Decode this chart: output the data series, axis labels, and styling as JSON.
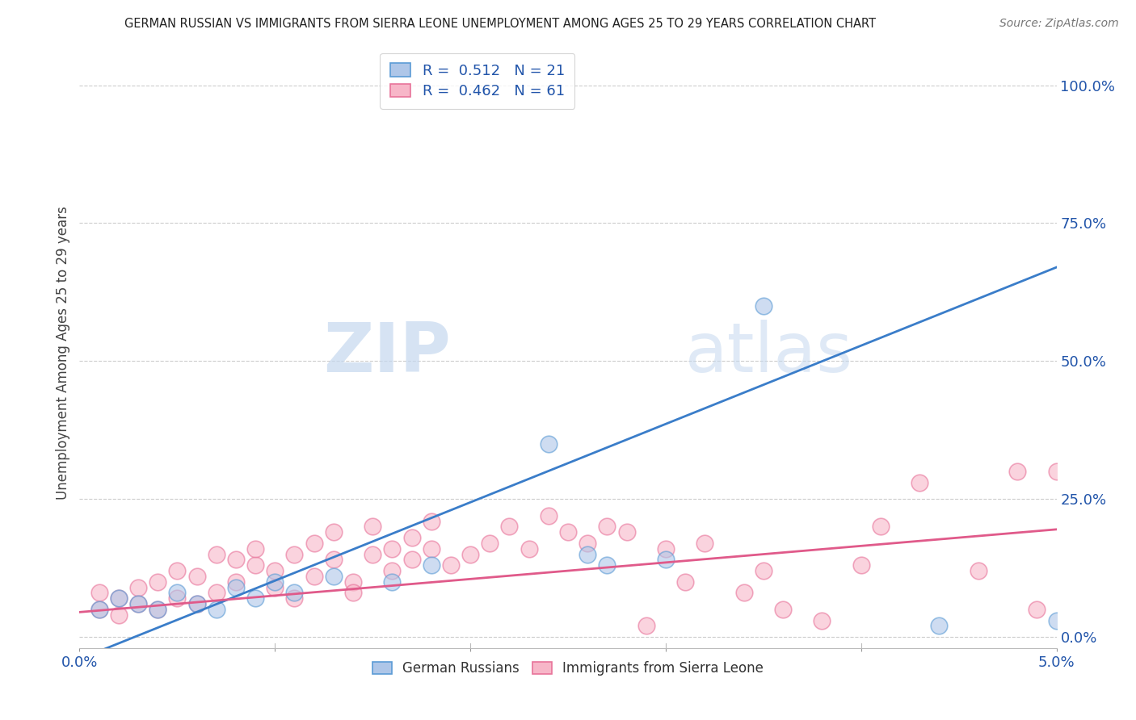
{
  "title": "GERMAN RUSSIAN VS IMMIGRANTS FROM SIERRA LEONE UNEMPLOYMENT AMONG AGES 25 TO 29 YEARS CORRELATION CHART",
  "source": "Source: ZipAtlas.com",
  "ylabel": "Unemployment Among Ages 25 to 29 years",
  "yaxis_labels": [
    "0.0%",
    "25.0%",
    "50.0%",
    "75.0%",
    "100.0%"
  ],
  "yaxis_values": [
    0.0,
    0.25,
    0.5,
    0.75,
    1.0
  ],
  "xlim": [
    0.0,
    0.05
  ],
  "ylim": [
    -0.02,
    1.05
  ],
  "blue_R": 0.512,
  "blue_N": 21,
  "pink_R": 0.462,
  "pink_N": 61,
  "blue_fill_color": "#aec6e8",
  "pink_fill_color": "#f7b6c8",
  "blue_edge_color": "#5b9bd5",
  "pink_edge_color": "#e8739a",
  "blue_line_color": "#3a7dc9",
  "pink_line_color": "#e05a8a",
  "watermark_zip": "ZIP",
  "watermark_atlas": "atlas",
  "legend_label_blue": "German Russians",
  "legend_label_pink": "Immigrants from Sierra Leone",
  "blue_scatter_x": [
    0.001,
    0.002,
    0.003,
    0.004,
    0.005,
    0.006,
    0.007,
    0.008,
    0.009,
    0.01,
    0.011,
    0.013,
    0.016,
    0.018,
    0.024,
    0.026,
    0.027,
    0.03,
    0.035,
    0.044,
    0.05
  ],
  "blue_scatter_y": [
    0.05,
    0.07,
    0.06,
    0.05,
    0.08,
    0.06,
    0.05,
    0.09,
    0.07,
    0.1,
    0.08,
    0.11,
    0.1,
    0.13,
    0.35,
    0.15,
    0.13,
    0.14,
    0.6,
    0.02,
    0.03
  ],
  "pink_scatter_x": [
    0.001,
    0.001,
    0.002,
    0.002,
    0.003,
    0.003,
    0.004,
    0.004,
    0.005,
    0.005,
    0.006,
    0.006,
    0.007,
    0.007,
    0.008,
    0.008,
    0.009,
    0.009,
    0.01,
    0.01,
    0.011,
    0.011,
    0.012,
    0.012,
    0.013,
    0.013,
    0.014,
    0.014,
    0.015,
    0.015,
    0.016,
    0.016,
    0.017,
    0.017,
    0.018,
    0.018,
    0.019,
    0.02,
    0.021,
    0.022,
    0.023,
    0.024,
    0.025,
    0.026,
    0.027,
    0.028,
    0.029,
    0.03,
    0.031,
    0.032,
    0.034,
    0.035,
    0.036,
    0.038,
    0.04,
    0.041,
    0.043,
    0.046,
    0.048,
    0.049,
    0.05
  ],
  "pink_scatter_y": [
    0.05,
    0.08,
    0.04,
    0.07,
    0.06,
    0.09,
    0.05,
    0.1,
    0.07,
    0.12,
    0.06,
    0.11,
    0.15,
    0.08,
    0.14,
    0.1,
    0.13,
    0.16,
    0.09,
    0.12,
    0.15,
    0.07,
    0.17,
    0.11,
    0.14,
    0.19,
    0.1,
    0.08,
    0.15,
    0.2,
    0.16,
    0.12,
    0.18,
    0.14,
    0.21,
    0.16,
    0.13,
    0.15,
    0.17,
    0.2,
    0.16,
    0.22,
    0.19,
    0.17,
    0.2,
    0.19,
    0.02,
    0.16,
    0.1,
    0.17,
    0.08,
    0.12,
    0.05,
    0.03,
    0.13,
    0.2,
    0.28,
    0.12,
    0.3,
    0.05,
    0.3
  ],
  "blue_line_x0": 0.0,
  "blue_line_y0": -0.04,
  "blue_line_x1": 0.05,
  "blue_line_y1": 0.67,
  "pink_line_x0": 0.0,
  "pink_line_y0": 0.045,
  "pink_line_x1": 0.05,
  "pink_line_y1": 0.195,
  "background_color": "#ffffff",
  "grid_color": "#cccccc"
}
